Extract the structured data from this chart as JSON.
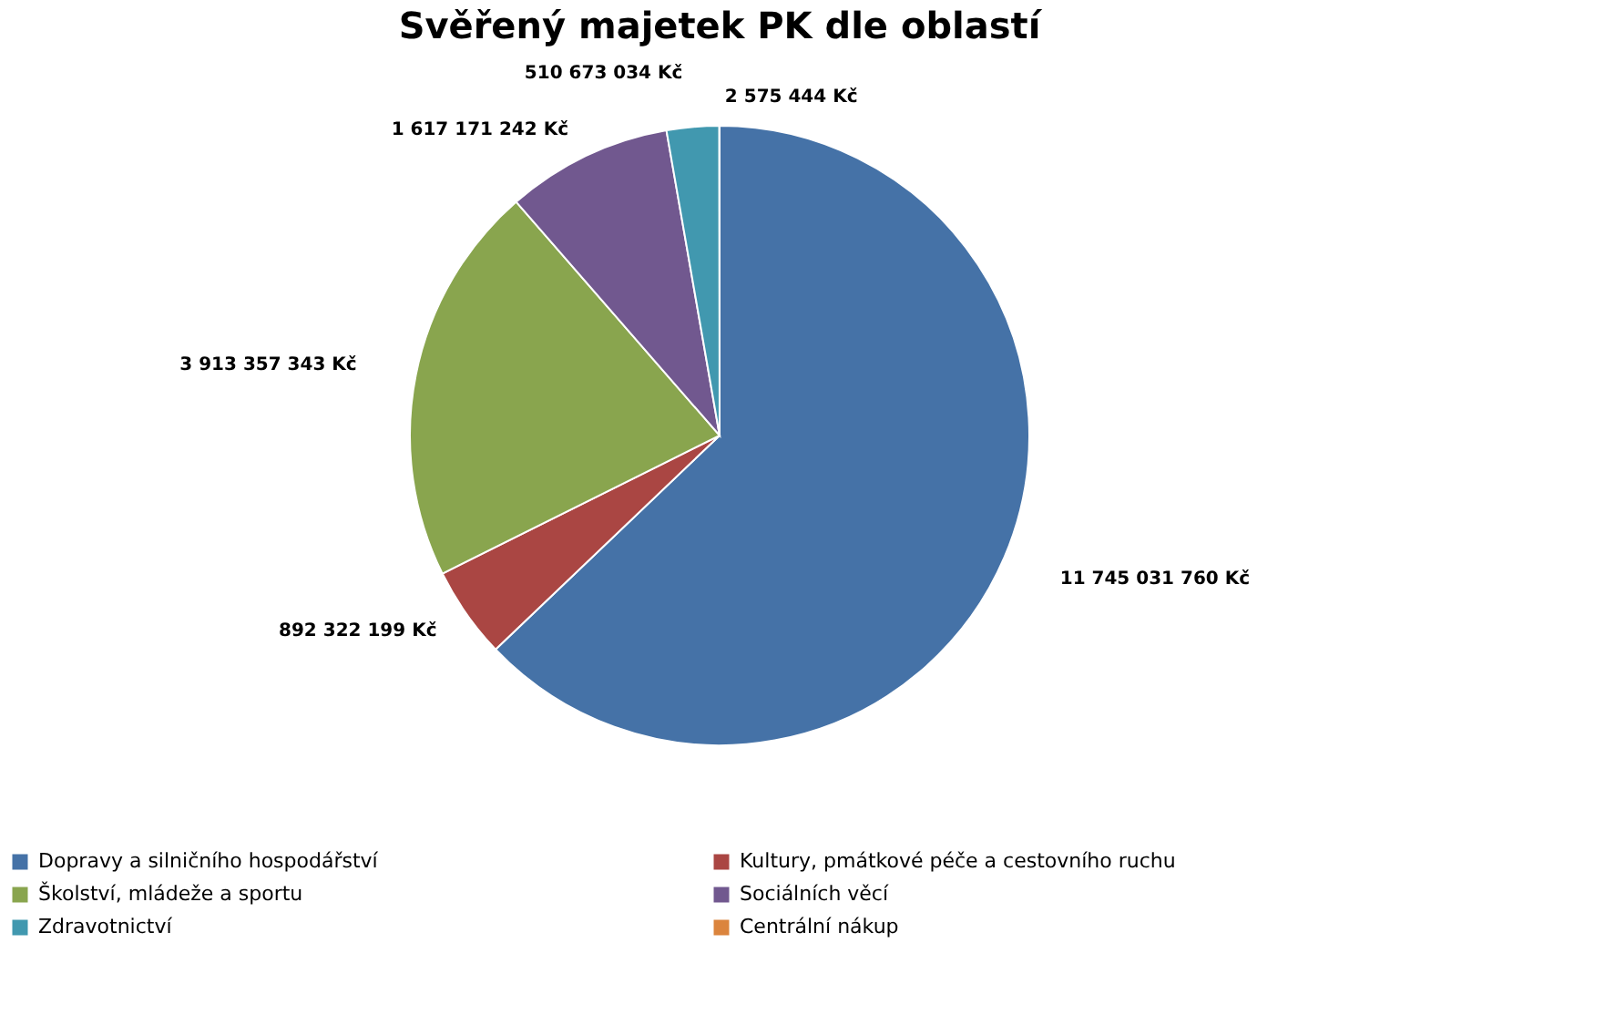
{
  "chart_data": {
    "type": "pie",
    "title": "Svěřený majetek PK dle oblastí",
    "categories": [
      "Dopravy a silničního hospodářství",
      "Kultury, pmátkové  péče a cestovního ruchu",
      "Školství, mládeže a sportu",
      "Sociálních věcí",
      "Zdravotnictví",
      "Centrální nákup"
    ],
    "values": [
      11745031760,
      892322199,
      3913357343,
      1617171242,
      510673034,
      2575444
    ],
    "value_labels": [
      "11 745 031 760 Kč",
      "892 322 199 Kč",
      "3 913 357 343 Kč",
      "1 617 171 242 Kč",
      "510 673 034 Kč",
      "2 575 444 Kč"
    ],
    "colors": [
      "#4572a7",
      "#aa4643",
      "#89a54e",
      "#71588f",
      "#4198af",
      "#db843d"
    ],
    "legend": "bottom"
  }
}
